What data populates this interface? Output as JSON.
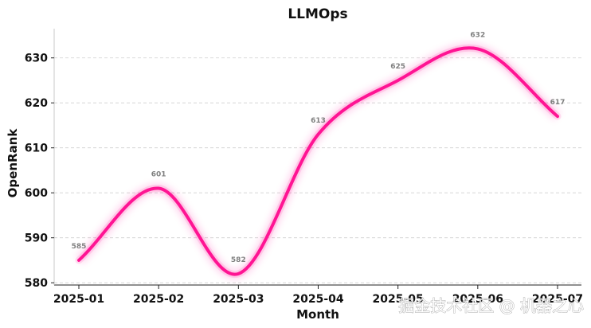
{
  "chart_data": {
    "type": "line",
    "title": "LLMOps",
    "xlabel": "Month",
    "ylabel": "OpenRank",
    "categories": [
      "2025-01",
      "2025-02",
      "2025-03",
      "2025-04",
      "2025-05",
      "2025-06",
      "2025-07"
    ],
    "series": [
      {
        "name": "OpenRank",
        "values": [
          585,
          601,
          582,
          613,
          625,
          632,
          617
        ],
        "color": "#ff1493"
      }
    ],
    "ylim": [
      579.5,
      636.5
    ],
    "yticks": [
      580,
      590,
      600,
      610,
      620,
      630
    ],
    "data_labels": [
      "585",
      "601",
      "582",
      "613",
      "625",
      "632",
      "617"
    ],
    "grid": "horizontal dashed"
  },
  "watermark": "掘金技术社区 @ 机器之心"
}
